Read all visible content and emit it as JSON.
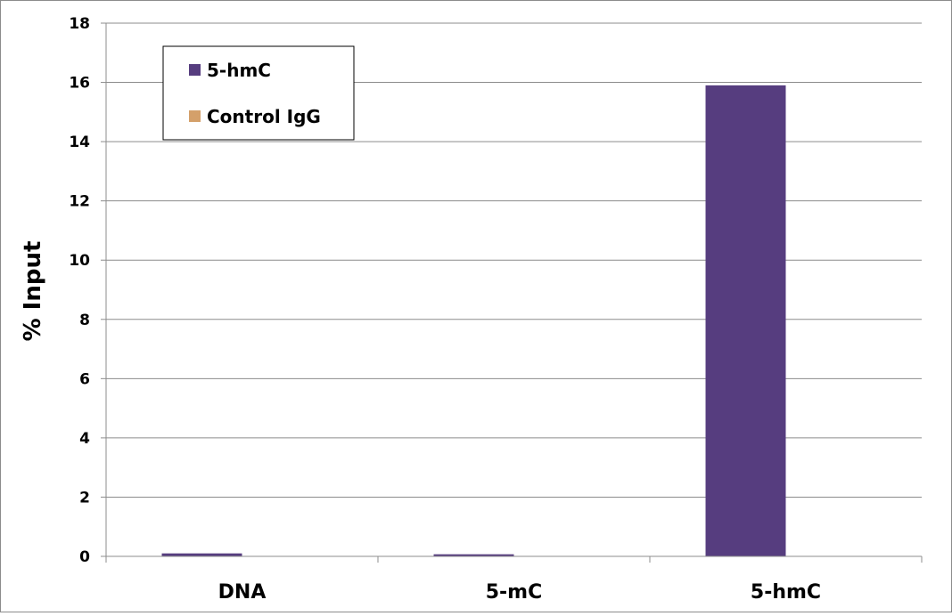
{
  "chart_data": {
    "type": "bar",
    "title": "",
    "xlabel": "",
    "ylabel": "% Input",
    "ylim": [
      0,
      18
    ],
    "yticks": [
      0,
      2,
      4,
      6,
      8,
      10,
      12,
      14,
      16,
      18
    ],
    "grid": true,
    "legend_position": "top-left",
    "categories": [
      "DNA",
      "5-mC",
      "5-hmC"
    ],
    "series": [
      {
        "name": "5-hmC",
        "color": "#563d7f",
        "values": [
          0.1,
          0.07,
          15.9
        ]
      },
      {
        "name": "Control IgG",
        "color": "#d4a06a",
        "values": [
          0,
          0,
          0
        ]
      }
    ]
  }
}
